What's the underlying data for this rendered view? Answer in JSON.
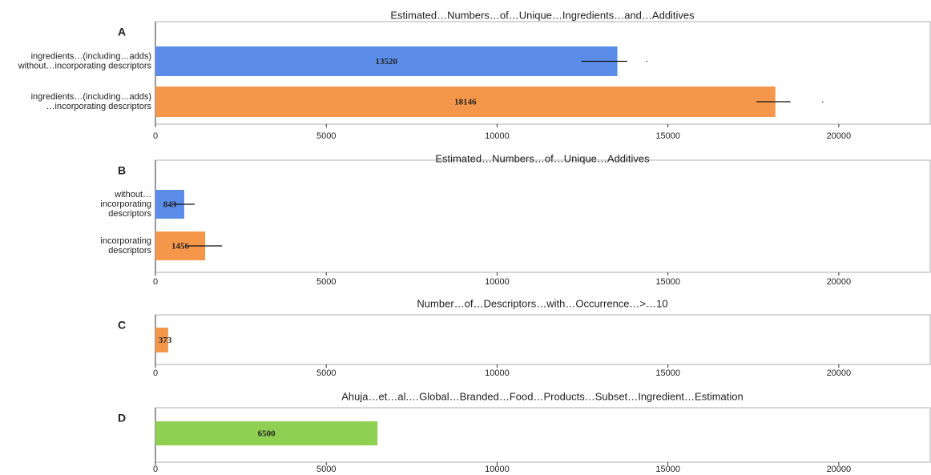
{
  "chart_data": [
    {
      "type": "bar",
      "orientation": "horizontal",
      "panel": "A",
      "title": "Estimated…Numbers…of…Unique…Ingredients…and…Additives",
      "categories": [
        [
          "ingredients…(including…adds)",
          "without…incorporating descriptors"
        ],
        [
          "ingredients…(including…adds)",
          "…incorporating descriptors"
        ]
      ],
      "values": [
        13520,
        18146
      ],
      "colors": [
        "#5b8ce8",
        "#f5974b"
      ],
      "error_range": [
        [
          12470,
          13810
        ],
        [
          17590,
          18590
        ]
      ],
      "markers": [
        14380,
        19530
      ],
      "xlim": [
        0,
        22700
      ],
      "xticks": [
        0,
        5000,
        10000,
        15000,
        20000
      ]
    },
    {
      "type": "bar",
      "orientation": "horizontal",
      "panel": "B",
      "title": "Estimated…Numbers…of…Unique…Additives",
      "categories": [
        [
          "without…",
          "incorporating",
          "descriptors"
        ],
        [
          "incorporating",
          "descriptors"
        ]
      ],
      "values": [
        843,
        1456
      ],
      "colors": [
        "#5b8ce8",
        "#f5974b"
      ],
      "error_range": [
        [
          490,
          1150
        ],
        [
          940,
          1950
        ]
      ],
      "xlim": [
        0,
        22700
      ],
      "xticks": [
        0,
        5000,
        10000,
        15000,
        20000
      ]
    },
    {
      "type": "bar",
      "orientation": "horizontal",
      "panel": "C",
      "title": "Number…of…Descriptors…with…Occurrence…>…10",
      "values": [
        373
      ],
      "colors": [
        "#f5974b"
      ],
      "xlim": [
        0,
        22700
      ],
      "xticks": [
        0,
        5000,
        10000,
        15000,
        20000
      ]
    },
    {
      "type": "bar",
      "orientation": "horizontal",
      "panel": "D",
      "title": "Ahuja…et…al.…Global…Branded…Food…Products…Subset…Ingredient…Estimation",
      "values": [
        6500
      ],
      "colors": [
        "#8fcf52"
      ],
      "xlim": [
        0,
        22700
      ],
      "xticks": [
        0,
        5000,
        10000,
        15000,
        20000
      ]
    }
  ]
}
